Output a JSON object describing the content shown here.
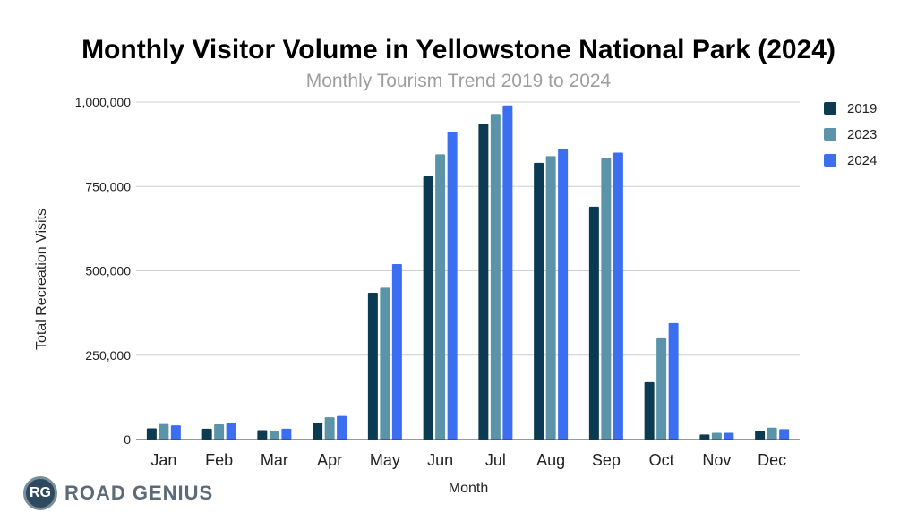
{
  "chart_data": {
    "type": "bar",
    "title": "Monthly Visitor Volume in Yellowstone National Park (2024)",
    "subtitle": "Monthly Tourism Trend 2019 to 2024",
    "xlabel": "Month",
    "ylabel": "Total Recreation Visits",
    "ylim": [
      0,
      1000000
    ],
    "yticks": [
      0,
      250000,
      500000,
      750000,
      1000000
    ],
    "ytick_labels": [
      "0",
      "250,000",
      "500,000",
      "750,000",
      "1,000,000"
    ],
    "grid": true,
    "legend": "right",
    "categories": [
      "Jan",
      "Feb",
      "Mar",
      "Apr",
      "May",
      "Jun",
      "Jul",
      "Aug",
      "Sep",
      "Oct",
      "Nov",
      "Dec"
    ],
    "series": [
      {
        "name": "2019",
        "color": "#0b3b52",
        "values": [
          33000,
          32000,
          28000,
          50000,
          435000,
          780000,
          935000,
          820000,
          690000,
          170000,
          15000,
          25000
        ]
      },
      {
        "name": "2023",
        "color": "#5b93a8",
        "values": [
          46000,
          45000,
          26000,
          66000,
          450000,
          845000,
          965000,
          840000,
          835000,
          300000,
          20000,
          35000
        ]
      },
      {
        "name": "2024",
        "color": "#3b6ef0",
        "values": [
          42000,
          48000,
          32000,
          70000,
          520000,
          912000,
          990000,
          862000,
          850000,
          345000,
          20000,
          31000
        ]
      }
    ]
  },
  "logo": {
    "badge": "RG",
    "text": "ROAD GENIUS"
  }
}
